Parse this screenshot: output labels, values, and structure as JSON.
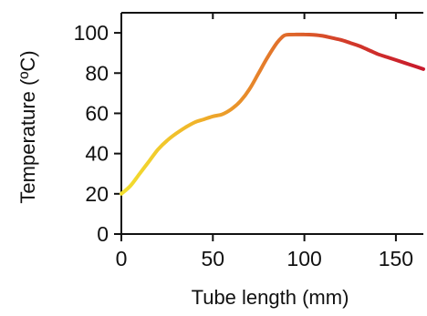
{
  "chart_data": {
    "type": "line",
    "title": "",
    "xlabel": "Tube length (mm)",
    "ylabel": "Temperature (ºC)",
    "xlim": [
      0,
      165
    ],
    "ylim": [
      0,
      110
    ],
    "xticks": [
      0,
      50,
      100,
      150
    ],
    "yticks": [
      0,
      20,
      40,
      60,
      80,
      100
    ],
    "xtick_labels": [
      "0",
      "50",
      "100",
      "150"
    ],
    "ytick_labels": [
      "0",
      "20",
      "40",
      "60",
      "80",
      "100"
    ],
    "grid": false,
    "legend": "none",
    "line_gradient": [
      "#f2e02f",
      "#f0b32a",
      "#e3762b",
      "#d23a2a",
      "#c8192c"
    ],
    "series": [
      {
        "x": [
          0,
          5,
          10,
          15,
          20,
          25,
          30,
          35,
          40,
          45,
          50,
          55,
          60,
          65,
          70,
          75,
          80,
          85,
          88,
          90,
          95,
          100,
          105,
          110,
          115,
          120,
          125,
          130,
          135,
          140,
          145,
          150,
          155,
          160,
          165
        ],
        "y": [
          20,
          24,
          30,
          36,
          42,
          46.5,
          50,
          53,
          55.5,
          57,
          58.5,
          59.5,
          62,
          66,
          72,
          80,
          88,
          95,
          98,
          99,
          99.2,
          99.2,
          99,
          98.5,
          97.5,
          96.5,
          95,
          93.5,
          91.5,
          89.5,
          88,
          86.5,
          85,
          83.5,
          82
        ]
      }
    ]
  }
}
